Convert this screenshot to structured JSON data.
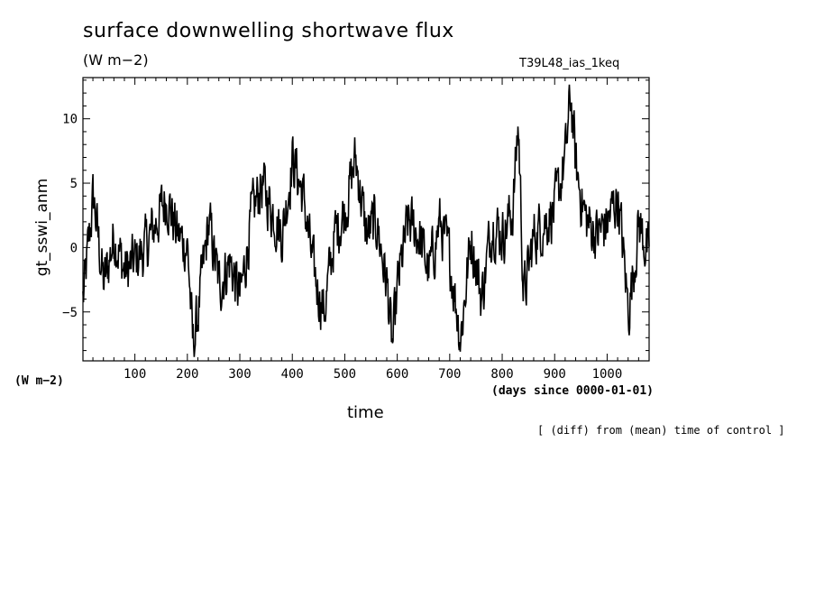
{
  "title": "surface downwelling shortwave flux",
  "units_label": "(W m−2)",
  "run_label": "T39L48_ias_1keq",
  "y_unit_label": "(W m−2)",
  "x_sub_label": "(days since 0000-01-01)",
  "footnote": "[ (diff) from (mean) time of control ]",
  "chart_data": {
    "type": "line",
    "title": "surface downwelling shortwave flux",
    "xlabel": "time",
    "ylabel": "gt_sswi_anm",
    "xlim": [
      1,
      1080
    ],
    "ylim": [
      -8.8,
      13.2
    ],
    "xticks": [
      100,
      200,
      300,
      400,
      500,
      600,
      700,
      800,
      900,
      1000
    ],
    "yticks": [
      -5,
      0,
      5,
      10
    ],
    "grid": false,
    "series": [
      {
        "x": [
          1,
          20,
          40,
          60,
          80,
          100,
          120,
          140,
          160,
          180,
          200,
          210,
          220,
          240,
          260,
          280,
          300,
          320,
          340,
          360,
          380,
          400,
          420,
          440,
          460,
          480,
          500,
          520,
          540,
          560,
          580,
          590,
          600,
          620,
          640,
          660,
          680,
          700,
          720,
          740,
          760,
          780,
          800,
          820,
          830,
          840,
          860,
          880,
          900,
          920,
          930,
          940,
          960,
          980,
          1000,
          1020,
          1040,
          1060,
          1080
        ],
        "values": [
          -4,
          4,
          -3,
          1,
          -2,
          -1,
          0,
          2,
          4,
          1,
          0,
          -8,
          -5,
          2,
          -3,
          -1,
          -4,
          2,
          5,
          3,
          1,
          7,
          4,
          -2,
          -5,
          1,
          3,
          7,
          1,
          2,
          -3,
          -8,
          -3,
          2,
          1,
          -2,
          2,
          -1,
          -7,
          1,
          -4,
          2,
          1,
          3,
          10,
          -4,
          1,
          2,
          3,
          7,
          12,
          6,
          2,
          1,
          2,
          4,
          -5,
          2,
          -1
        ]
      }
    ]
  }
}
